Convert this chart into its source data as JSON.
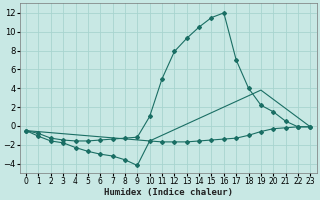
{
  "xlabel": "Humidex (Indice chaleur)",
  "xlim": [
    -0.5,
    23.5
  ],
  "ylim": [
    -5,
    13
  ],
  "yticks": [
    -4,
    -2,
    0,
    2,
    4,
    6,
    8,
    10,
    12
  ],
  "xticks": [
    0,
    1,
    2,
    3,
    4,
    5,
    6,
    7,
    8,
    9,
    10,
    11,
    12,
    13,
    14,
    15,
    16,
    17,
    18,
    19,
    20,
    21,
    22,
    23
  ],
  "background_color": "#c8e8e4",
  "grid_color": "#a8d4cf",
  "line_color": "#1a6e64",
  "series": [
    {
      "x": [
        0,
        1,
        2,
        3,
        4,
        5,
        6,
        7,
        8,
        9,
        10,
        11,
        12,
        13,
        14,
        15,
        16,
        17,
        18,
        19,
        20,
        21,
        22,
        23
      ],
      "y": [
        -0.5,
        -1.1,
        -1.6,
        -1.8,
        -2.3,
        -2.7,
        -3.0,
        -3.2,
        -3.6,
        -4.2,
        -1.6,
        -1.7,
        -1.7,
        -1.7,
        -1.6,
        -1.5,
        -1.4,
        -1.3,
        -1.0,
        -0.6,
        -0.3,
        -0.2,
        -0.1,
        -0.1
      ]
    },
    {
      "x": [
        0,
        1,
        2,
        3,
        4,
        5,
        6,
        7,
        8,
        9,
        10,
        11,
        12,
        13,
        14,
        15,
        16,
        17,
        18,
        19,
        20,
        21,
        22,
        23
      ],
      "y": [
        -0.5,
        -0.8,
        -1.3,
        -1.5,
        -1.6,
        -1.6,
        -1.5,
        -1.4,
        -1.3,
        -1.2,
        1.0,
        5.0,
        7.9,
        9.3,
        10.5,
        11.5,
        12.0,
        7.0,
        4.0,
        2.2,
        1.5,
        0.5,
        -0.1,
        -0.1
      ]
    },
    {
      "x": [
        0,
        10,
        19,
        23
      ],
      "y": [
        -0.5,
        -1.6,
        3.8,
        -0.1
      ]
    }
  ]
}
